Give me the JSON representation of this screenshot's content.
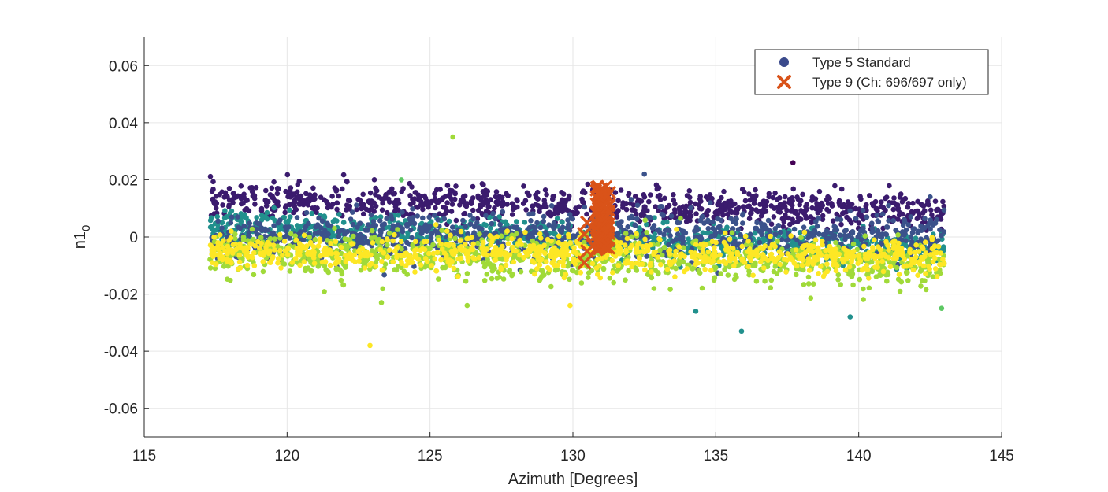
{
  "chart_data": {
    "type": "scatter",
    "title": "",
    "xlabel": "Azimuth [Degrees]",
    "ylabel_main": "n1",
    "ylabel_sub": "0",
    "xlim": [
      115,
      145
    ],
    "ylim": [
      -0.07,
      0.07
    ],
    "xticks": [
      115,
      120,
      125,
      130,
      135,
      140,
      145
    ],
    "xtick_labels": [
      "115",
      "120",
      "125",
      "130",
      "135",
      "140",
      "145"
    ],
    "yticks": [
      -0.06,
      -0.04,
      -0.02,
      0,
      0.02,
      0.04,
      0.06
    ],
    "ytick_labels": [
      "-0.06",
      "-0.04",
      "-0.02",
      "0",
      "0.02",
      "0.04",
      "0.06"
    ],
    "grid": true,
    "legend_position": "top-right",
    "colors": {
      "viridis": [
        "#440154",
        "#3b528b",
        "#21908d",
        "#5dc863",
        "#fde725"
      ],
      "legend_circle": "#3b4a8c",
      "type9": "#d95319",
      "grid": "#e6e6e6",
      "axis": "#262626"
    },
    "series": [
      {
        "name": "Type 5 Standard",
        "marker": "circle",
        "x_range": [
          117.3,
          143.0
        ],
        "bands": [
          {
            "color": "#3b1b6e",
            "y_start": 0.013,
            "y_end": 0.009,
            "spread": 0.003
          },
          {
            "color": "#21908d",
            "y_start": 0.004,
            "y_end": -0.005,
            "spread": 0.003
          },
          {
            "color": "#3b528b",
            "y_start": 0.0,
            "y_end": 0.001,
            "spread": 0.004
          },
          {
            "color": "#a0da39",
            "y_start": -0.006,
            "y_end": -0.01,
            "spread": 0.004
          },
          {
            "color": "#fde725",
            "y_start": -0.005,
            "y_end": -0.007,
            "spread": 0.003
          }
        ],
        "outliers": [
          {
            "x": 125.8,
            "y": 0.035,
            "color": "#a0da39"
          },
          {
            "x": 122.9,
            "y": -0.038,
            "color": "#fde725"
          },
          {
            "x": 123.3,
            "y": -0.023,
            "color": "#a0da39"
          },
          {
            "x": 137.7,
            "y": 0.026,
            "color": "#440154"
          },
          {
            "x": 135.9,
            "y": -0.033,
            "color": "#21908d"
          },
          {
            "x": 139.7,
            "y": -0.028,
            "color": "#21908d"
          },
          {
            "x": 134.3,
            "y": -0.026,
            "color": "#21908d"
          },
          {
            "x": 142.9,
            "y": -0.025,
            "color": "#5dc863"
          },
          {
            "x": 132.5,
            "y": 0.022,
            "color": "#3b528b"
          },
          {
            "x": 124.0,
            "y": 0.02,
            "color": "#5dc863"
          },
          {
            "x": 142.5,
            "y": 0.014,
            "color": "#3b528b"
          },
          {
            "x": 126.3,
            "y": -0.024,
            "color": "#a0da39"
          },
          {
            "x": 129.9,
            "y": -0.024,
            "color": "#fde725"
          }
        ]
      },
      {
        "name": "Type 9 (Ch: 696/697 only)",
        "marker": "x",
        "x_range": [
          130.3,
          131.3
        ],
        "y_range": [
          -0.01,
          0.018
        ]
      }
    ]
  }
}
